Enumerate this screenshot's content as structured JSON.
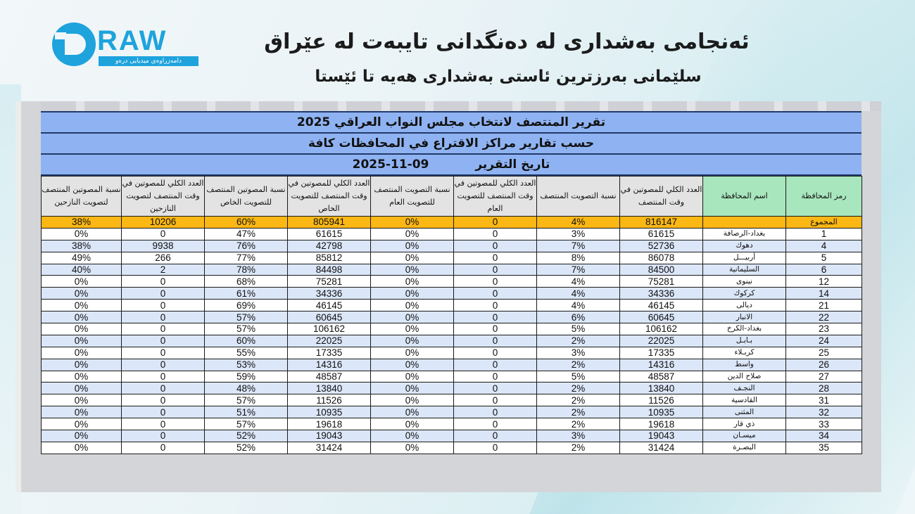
{
  "brand": {
    "logo_word": "RAW",
    "logo_letter": "D",
    "tagline": "دامەزراوەی میدیایی درەو",
    "accent": "#1ea3dd"
  },
  "headline": "ئەنجامی بەشداری لە دەنگدانی تایبەت لە عێراق",
  "subheadline": "سلێمانی بەرزترین ئاستی بەشداری هەیە تا ئێستا",
  "report": {
    "title": "تقرير المنتصف  لانتخاب مجلس النواب العراقي 2025",
    "subtitle": "حسب تقارير مراكز الاقتراع في المحافظات كافة",
    "date_label": "تاريخ التقرير",
    "date": "2025-11-09",
    "colors": {
      "banner": "#8fb3f2",
      "header_gray": "#e3e3e3",
      "header_green": "#a8e6bd",
      "total_row": "#fbb714",
      "row_alt": "#dbe6f8"
    },
    "columns": [
      "رمز المحافظة",
      "اسم المحافظة",
      "العدد الكلي للمصوتين في وقت المنتصف",
      "نسبة التصويت المنتصف",
      "العدد الكلي للمصوتين في وقت المنتصف للتصويت العام",
      "نسبة التصويت المنتصف للتصويت العام",
      "العدد الكلي للمصوتين في وقت المنتصف للتصويت الخاص",
      "نسبة المصوتين المنتصف للتصويت الخاص",
      "العدد الكلي للمصوتين في وقت المنتصف لتصويت النازحين",
      "نسبة المصوتين المنتصف لتصويت النازحين"
    ],
    "total": {
      "label": "المجموع",
      "name": "",
      "total_voters": "816147",
      "turnout": "4%",
      "general_voters": "0",
      "general_pct": "0%",
      "special_voters": "805941",
      "special_pct": "60%",
      "displaced_voters": "10206",
      "displaced_pct": "38%"
    },
    "rows": [
      {
        "code": "1",
        "name": "بغداد-الرصافة",
        "total_voters": "61615",
        "turnout": "3%",
        "general_voters": "0",
        "general_pct": "0%",
        "special_voters": "61615",
        "special_pct": "47%",
        "displaced_voters": "0",
        "displaced_pct": "0%"
      },
      {
        "code": "4",
        "name": "دهوك",
        "total_voters": "52736",
        "turnout": "7%",
        "general_voters": "0",
        "general_pct": "0%",
        "special_voters": "42798",
        "special_pct": "76%",
        "displaced_voters": "9938",
        "displaced_pct": "38%"
      },
      {
        "code": "5",
        "name": "أربيـــل",
        "total_voters": "86078",
        "turnout": "8%",
        "general_voters": "0",
        "general_pct": "0%",
        "special_voters": "85812",
        "special_pct": "77%",
        "displaced_voters": "266",
        "displaced_pct": "49%"
      },
      {
        "code": "6",
        "name": "السليمانية",
        "total_voters": "84500",
        "turnout": "7%",
        "general_voters": "0",
        "general_pct": "0%",
        "special_voters": "84498",
        "special_pct": "78%",
        "displaced_voters": "2",
        "displaced_pct": "40%"
      },
      {
        "code": "12",
        "name": "نينوى",
        "total_voters": "75281",
        "turnout": "4%",
        "general_voters": "0",
        "general_pct": "0%",
        "special_voters": "75281",
        "special_pct": "68%",
        "displaced_voters": "0",
        "displaced_pct": "0%"
      },
      {
        "code": "14",
        "name": "كركوك",
        "total_voters": "34336",
        "turnout": "4%",
        "general_voters": "0",
        "general_pct": "0%",
        "special_voters": "34336",
        "special_pct": "61%",
        "displaced_voters": "0",
        "displaced_pct": "0%"
      },
      {
        "code": "21",
        "name": "ديالى",
        "total_voters": "46145",
        "turnout": "4%",
        "general_voters": "0",
        "general_pct": "0%",
        "special_voters": "46145",
        "special_pct": "69%",
        "displaced_voters": "0",
        "displaced_pct": "0%"
      },
      {
        "code": "22",
        "name": "الانبار",
        "total_voters": "60645",
        "turnout": "6%",
        "general_voters": "0",
        "general_pct": "0%",
        "special_voters": "60645",
        "special_pct": "57%",
        "displaced_voters": "0",
        "displaced_pct": "0%"
      },
      {
        "code": "23",
        "name": "بغداد-الكرخ",
        "total_voters": "106162",
        "turnout": "5%",
        "general_voters": "0",
        "general_pct": "0%",
        "special_voters": "106162",
        "special_pct": "57%",
        "displaced_voters": "0",
        "displaced_pct": "0%"
      },
      {
        "code": "24",
        "name": "بـابـل",
        "total_voters": "22025",
        "turnout": "2%",
        "general_voters": "0",
        "general_pct": "0%",
        "special_voters": "22025",
        "special_pct": "60%",
        "displaced_voters": "0",
        "displaced_pct": "0%"
      },
      {
        "code": "25",
        "name": "كربـلاء",
        "total_voters": "17335",
        "turnout": "3%",
        "general_voters": "0",
        "general_pct": "0%",
        "special_voters": "17335",
        "special_pct": "55%",
        "displaced_voters": "0",
        "displaced_pct": "0%"
      },
      {
        "code": "26",
        "name": "واسط",
        "total_voters": "14316",
        "turnout": "2%",
        "general_voters": "0",
        "general_pct": "0%",
        "special_voters": "14316",
        "special_pct": "53%",
        "displaced_voters": "0",
        "displaced_pct": "0%"
      },
      {
        "code": "27",
        "name": "صلاح الدين",
        "total_voters": "48587",
        "turnout": "5%",
        "general_voters": "0",
        "general_pct": "0%",
        "special_voters": "48587",
        "special_pct": "59%",
        "displaced_voters": "0",
        "displaced_pct": "0%"
      },
      {
        "code": "28",
        "name": "النجـف",
        "total_voters": "13840",
        "turnout": "2%",
        "general_voters": "0",
        "general_pct": "0%",
        "special_voters": "13840",
        "special_pct": "48%",
        "displaced_voters": "0",
        "displaced_pct": "0%"
      },
      {
        "code": "31",
        "name": "القادسية",
        "total_voters": "11526",
        "turnout": "2%",
        "general_voters": "0",
        "general_pct": "0%",
        "special_voters": "11526",
        "special_pct": "57%",
        "displaced_voters": "0",
        "displaced_pct": "0%"
      },
      {
        "code": "32",
        "name": "المثنى",
        "total_voters": "10935",
        "turnout": "2%",
        "general_voters": "0",
        "general_pct": "0%",
        "special_voters": "10935",
        "special_pct": "51%",
        "displaced_voters": "0",
        "displaced_pct": "0%"
      },
      {
        "code": "33",
        "name": "ذي قار",
        "total_voters": "19618",
        "turnout": "2%",
        "general_voters": "0",
        "general_pct": "0%",
        "special_voters": "19618",
        "special_pct": "57%",
        "displaced_voters": "0",
        "displaced_pct": "0%"
      },
      {
        "code": "34",
        "name": "ميسـان",
        "total_voters": "19043",
        "turnout": "3%",
        "general_voters": "0",
        "general_pct": "0%",
        "special_voters": "19043",
        "special_pct": "52%",
        "displaced_voters": "0",
        "displaced_pct": "0%"
      },
      {
        "code": "35",
        "name": "البصـرة",
        "total_voters": "31424",
        "turnout": "2%",
        "general_voters": "0",
        "general_pct": "0%",
        "special_voters": "31424",
        "special_pct": "52%",
        "displaced_voters": "0",
        "displaced_pct": "0%"
      }
    ]
  }
}
